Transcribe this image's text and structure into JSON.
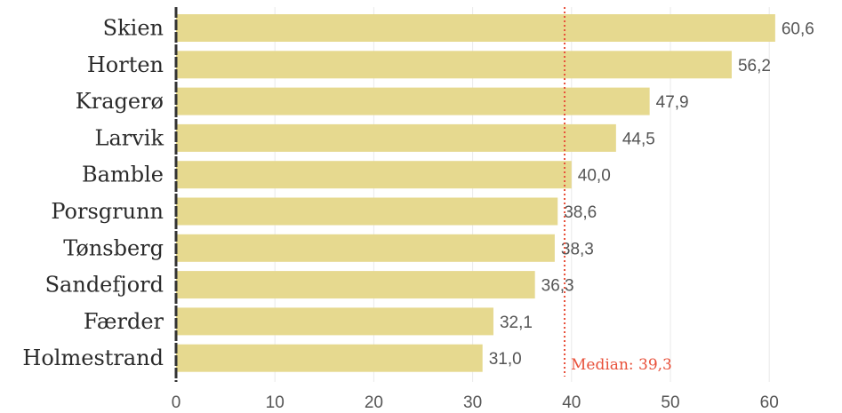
{
  "chart_data": {
    "type": "bar",
    "orientation": "horizontal",
    "categories": [
      "Skien",
      "Horten",
      "Kragerø",
      "Larvik",
      "Bamble",
      "Porsgrunn",
      "Tønsberg",
      "Sandefjord",
      "Færder",
      "Holmestrand"
    ],
    "values": [
      60.6,
      56.2,
      47.9,
      44.5,
      40.0,
      38.6,
      38.3,
      36.3,
      32.1,
      31.0
    ],
    "value_labels": [
      "60,6",
      "56,2",
      "47,9",
      "44,5",
      "40,0",
      "38,6",
      "38,3",
      "36,3",
      "32,1",
      "31,0"
    ],
    "x_ticks": [
      0,
      10,
      20,
      30,
      40,
      50,
      60
    ],
    "x_tick_labels": [
      "0",
      "10",
      "20",
      "30",
      "40",
      "50",
      "60"
    ],
    "xlim": [
      0,
      66
    ],
    "grid": "vertical",
    "median": {
      "value": 39.3,
      "label": "Median: 39,3"
    },
    "colors": {
      "bar": "#e6d98f",
      "median": "#e8503a",
      "axis": "#333333",
      "grid": "#eaeaea"
    }
  }
}
